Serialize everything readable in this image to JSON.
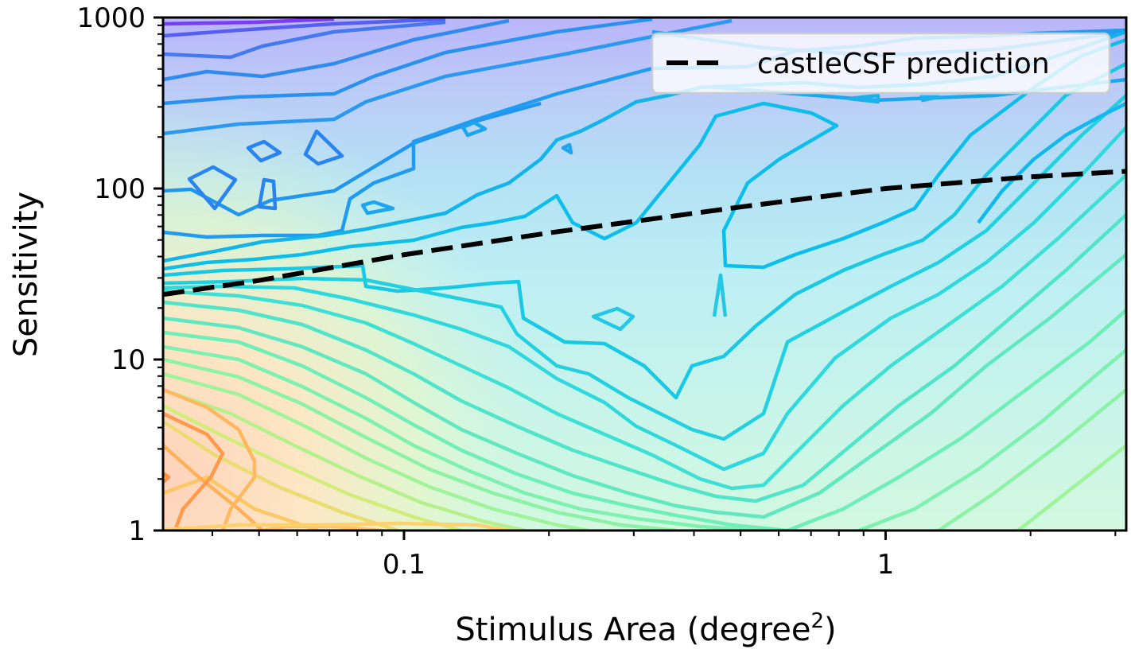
{
  "chart_data": {
    "type": "contour",
    "xlabel": "Stimulus Area (degree",
    "xlabel_sup": "2",
    "xlabel_close": ")",
    "ylabel": "Sensitivity",
    "xscale": "log",
    "yscale": "log",
    "xlim": [
      0.0316,
      3.16
    ],
    "ylim": [
      1,
      1000
    ],
    "x_ticks": [
      {
        "value": 0.1,
        "label": "0.1"
      },
      {
        "value": 1,
        "label": "1"
      }
    ],
    "y_ticks": [
      {
        "value": 1,
        "label": "1"
      },
      {
        "value": 10,
        "label": "10"
      },
      {
        "value": 100,
        "label": "100"
      },
      {
        "value": 1000,
        "label": "1000"
      }
    ],
    "grid": false,
    "legend_position": "top-right",
    "series": [
      {
        "name": "castleCSF prediction",
        "style": "dashed",
        "color": "#000000",
        "x": [
          0.0316,
          0.05,
          0.1,
          0.2,
          0.5,
          1,
          2,
          3.16
        ],
        "y": [
          24,
          29,
          41,
          55,
          78,
          100,
          117,
          126
        ]
      }
    ],
    "colormap": [
      "#6a00ff",
      "#2a8bf0",
      "#0bbbe6",
      "#2ae0d0",
      "#7ef2b0",
      "#cdf27a",
      "#fdbb5e",
      "#ff8a3c"
    ]
  }
}
